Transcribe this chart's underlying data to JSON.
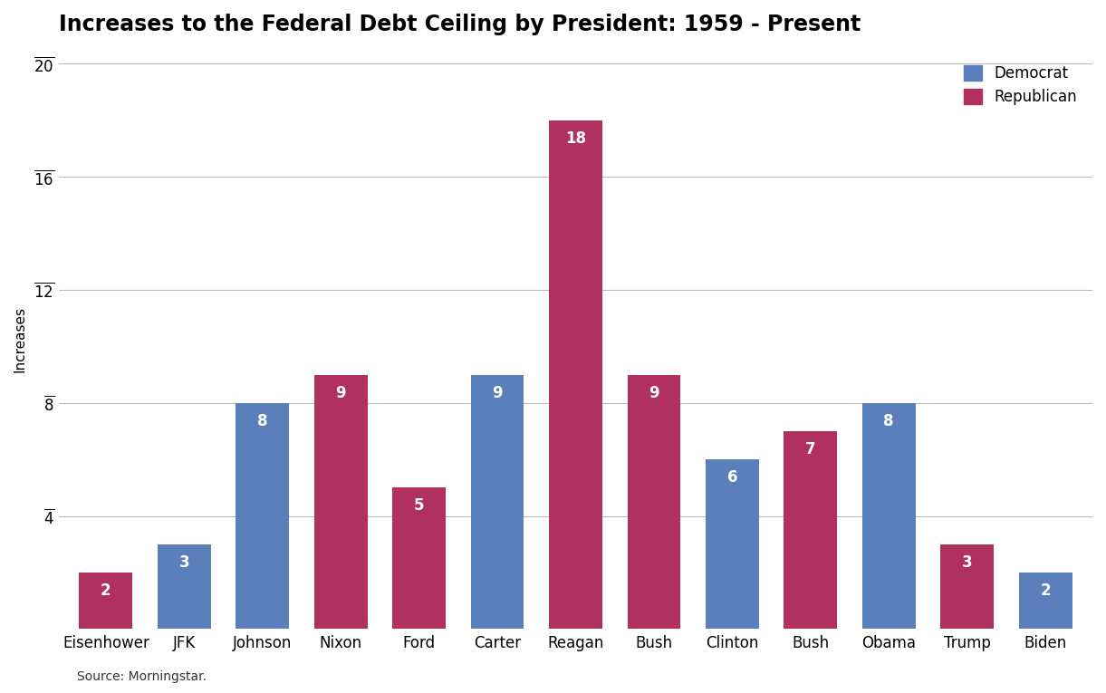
{
  "title": "Increases to the Federal Debt Ceiling by President: 1959 - Present",
  "source": "Source: Morningstar.",
  "ylabel": "Increases",
  "ylim": [
    0,
    20.5
  ],
  "yticks": [
    4,
    8,
    12,
    16,
    20
  ],
  "presidents": [
    "Eisenhower",
    "JFK",
    "Johnson",
    "Nixon",
    "Ford",
    "Carter",
    "Reagan",
    "Bush",
    "Clinton",
    "Bush",
    "Obama",
    "Trump",
    "Biden"
  ],
  "values": [
    2,
    3,
    8,
    9,
    5,
    9,
    18,
    9,
    6,
    7,
    8,
    3,
    2
  ],
  "parties": [
    "Republican",
    "Democrat",
    "Democrat",
    "Republican",
    "Republican",
    "Democrat",
    "Republican",
    "Republican",
    "Democrat",
    "Republican",
    "Democrat",
    "Republican",
    "Democrat"
  ],
  "democrat_color": "#5b7fba",
  "republican_color": "#b03060",
  "background_color": "#ffffff",
  "title_fontsize": 17,
  "label_fontsize": 11,
  "tick_fontsize": 12,
  "source_fontsize": 10,
  "legend_fontsize": 12,
  "bar_value_fontsize": 12,
  "grid_color": "#bbbbbb",
  "legend_labels": [
    "Democrat",
    "Republican"
  ]
}
